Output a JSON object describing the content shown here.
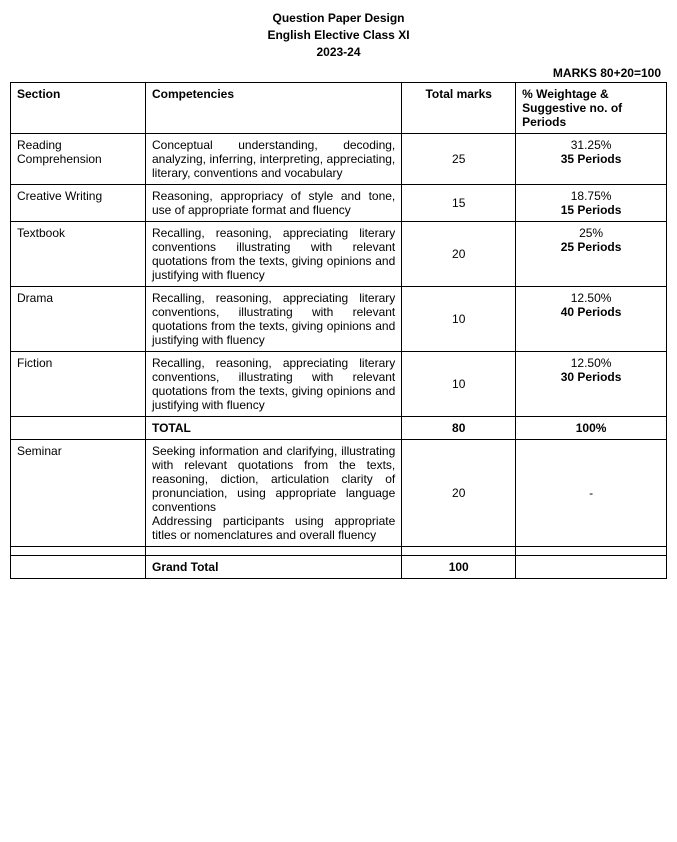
{
  "header": {
    "title1": "Question Paper Design",
    "title2": "English Elective Class XI",
    "year": "2023-24"
  },
  "marks_line": "MARKS 80+20=100",
  "columns": {
    "section": "Section",
    "competencies": "Competencies",
    "total_marks": "Total marks",
    "weightage": "% Weightage & Suggestive no. of Periods"
  },
  "rows": [
    {
      "section": "Reading Comprehension",
      "competencies": "Conceptual understanding, decoding, analyzing, inferring, interpreting, appreciating, literary, conventions and vocabulary",
      "marks": "25",
      "percent": "31.25%",
      "periods": "35 Periods"
    },
    {
      "section": "Creative Writing",
      "competencies": "Reasoning, appropriacy of style and tone, use of appropriate format and fluency",
      "marks": "15",
      "percent": "18.75%",
      "periods": "15 Periods"
    },
    {
      "section": "Textbook",
      "competencies": "Recalling, reasoning, appreciating literary conventions illustrating with relevant quotations from the texts, giving opinions and justifying with fluency",
      "marks": "20",
      "percent": "25%",
      "periods": "25 Periods"
    },
    {
      "section": "Drama",
      "competencies": "Recalling, reasoning, appreciating literary conventions, illustrating with relevant quotations from the texts, giving opinions and justifying with fluency",
      "marks": "10",
      "percent": "12.50%",
      "periods": "40 Periods"
    },
    {
      "section": "Fiction",
      "competencies": "Recalling, reasoning, appreciating literary conventions, illustrating with relevant quotations from the texts, giving opinions and justifying with fluency",
      "marks": "10",
      "percent": "12.50%",
      "periods": "30 Periods"
    }
  ],
  "total": {
    "label": "TOTAL",
    "marks": "80",
    "percent": "100%"
  },
  "seminar": {
    "section": "Seminar",
    "competencies": "Seeking information and clarifying, illustrating with relevant quotations from the texts, reasoning, diction, articulation clarity of pronunciation, using appropriate language conventions\nAddressing participants using appropriate titles or nomenclatures and overall fluency",
    "marks": "20",
    "percent": "-"
  },
  "grand_total": {
    "label": "Grand Total",
    "marks": "100"
  }
}
